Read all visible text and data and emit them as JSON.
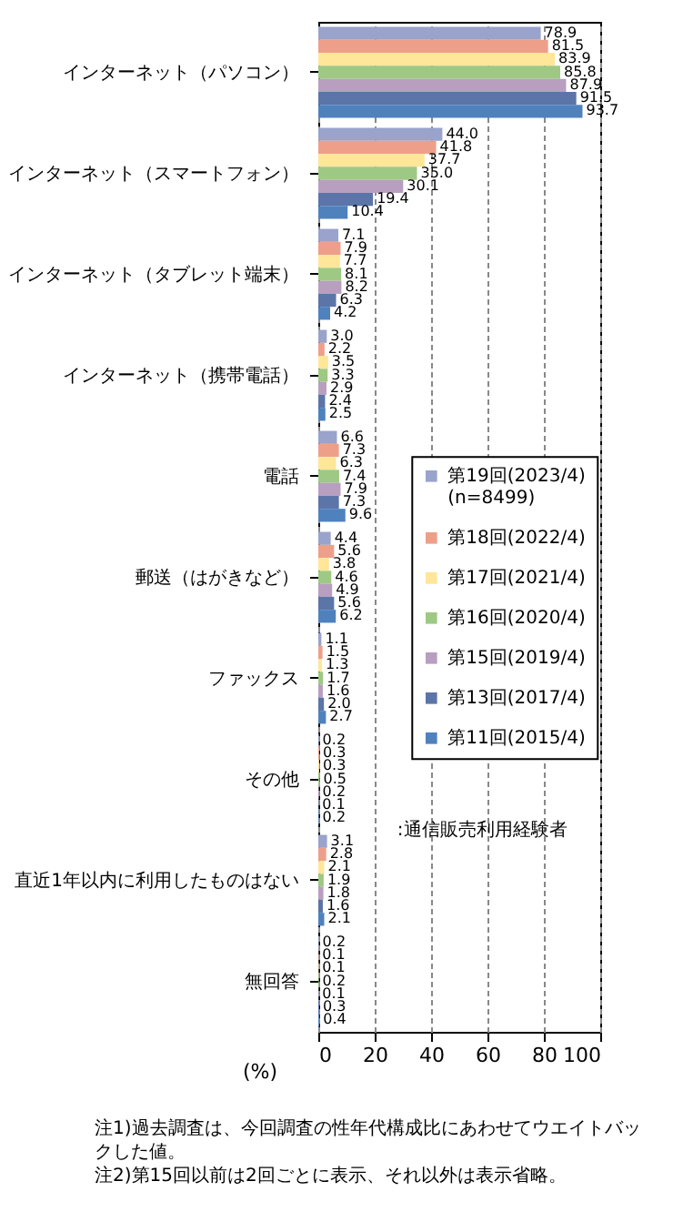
{
  "chart_data": {
    "type": "bar",
    "orientation": "horizontal",
    "categories": [
      "インターネット（パソコン）",
      "インターネット（スマートフォン）",
      "インターネット（タブレット端末）",
      "インターネット（携帯電話）",
      "電話",
      "郵送（はがきなど）",
      "ファックス",
      "その他",
      "直近1年以内に利用したものはない",
      "無回答"
    ],
    "series": [
      {
        "name": "第19回(2023/4)\n(n=8499)",
        "color": "#99a3cc",
        "values": [
          78.9,
          44.0,
          7.1,
          3.0,
          6.6,
          4.4,
          1.1,
          0.2,
          3.1,
          0.2
        ],
        "value_labels": [
          "78.9",
          "44.0",
          "7.1",
          "3.0",
          "6.6",
          "4.4",
          "1.1",
          "0.2",
          "3.1",
          "0.2"
        ]
      },
      {
        "name": "第18回(2022/4)",
        "color": "#ee9f8a",
        "values": [
          81.5,
          41.8,
          7.9,
          2.2,
          7.3,
          5.6,
          1.5,
          0.3,
          2.8,
          0.1
        ],
        "value_labels": [
          "81.5",
          "41.8",
          "7.9",
          "2.2",
          "7.3",
          "5.6",
          "1.5",
          "0.3",
          "2.8",
          "0.1"
        ]
      },
      {
        "name": "第17回(2021/4)",
        "color": "#ffe699",
        "values": [
          83.9,
          37.7,
          7.7,
          3.5,
          6.3,
          3.8,
          1.3,
          0.3,
          2.1,
          0.1
        ],
        "value_labels": [
          "83.9",
          "37.7",
          "7.7",
          "3.5",
          "6.3",
          "3.8",
          "1.3",
          "0.3",
          "2.1",
          "0.1"
        ]
      },
      {
        "name": "第16回(2020/4)",
        "color": "#9ec984",
        "values": [
          85.8,
          35.0,
          8.1,
          3.3,
          7.4,
          4.6,
          1.7,
          0.5,
          1.9,
          0.2
        ],
        "value_labels": [
          "85.8",
          "35.0",
          "8.1",
          "3.3",
          "7.4",
          "4.6",
          "1.7",
          "0.5",
          "1.9",
          "0.2"
        ]
      },
      {
        "name": "第15回(2019/4)",
        "color": "#b89fc0",
        "values": [
          87.9,
          30.1,
          8.2,
          2.9,
          7.9,
          4.9,
          1.6,
          0.2,
          1.8,
          0.1
        ],
        "value_labels": [
          "87.9",
          "30.1",
          "8.2",
          "2.9",
          "7.9",
          "4.9",
          "1.6",
          "0.2",
          "1.8",
          "0.1"
        ]
      },
      {
        "name": "第13回(2017/4)",
        "color": "#5b75a8",
        "values": [
          91.5,
          19.4,
          6.3,
          2.4,
          7.3,
          5.6,
          2.0,
          0.1,
          1.6,
          0.3
        ],
        "value_labels": [
          "91.5",
          "19.4",
          "6.3",
          "2.4",
          "7.3",
          "5.6",
          "2.0",
          "0.1",
          "1.6",
          "0.3"
        ]
      },
      {
        "name": "第11回(2015/4)",
        "color": "#4f81bd",
        "values": [
          93.7,
          10.4,
          4.2,
          2.5,
          9.6,
          6.2,
          2.7,
          0.2,
          2.1,
          0.4
        ],
        "value_labels": [
          "93.7",
          "10.4",
          "4.2",
          "2.5",
          "9.6",
          "6.2",
          "2.7",
          "0.2",
          "2.1",
          "0.4"
        ]
      }
    ],
    "xlim": [
      0,
      100
    ],
    "xticks": [
      0,
      20,
      40,
      60,
      80,
      100
    ],
    "xlabel": "(%)",
    "grid": "x",
    "legend": "right",
    "annotations": [
      ":通信販売利用経験者",
      "注1)過去調査は、今回調査の性年代構成比にあわせてウエイトバックした値。",
      "注2)第15回以前は2回ごとに表示、それ以外は表示省略。"
    ]
  }
}
